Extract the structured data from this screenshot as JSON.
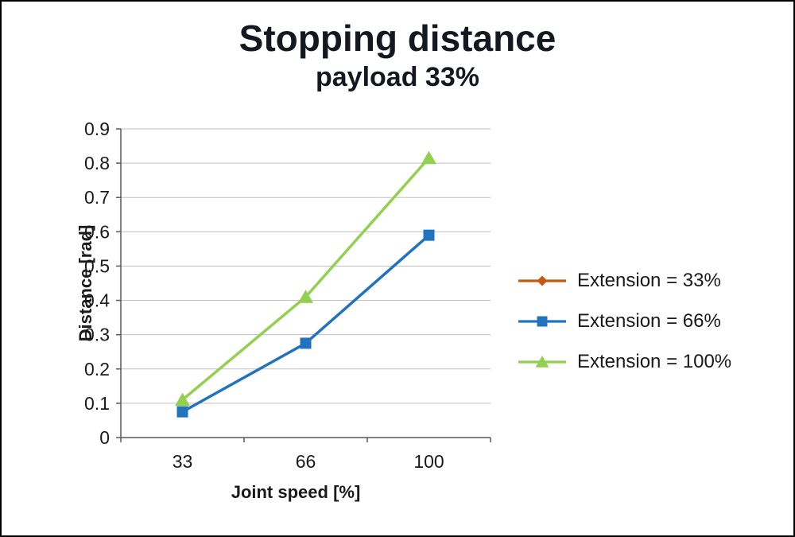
{
  "chart_data": {
    "type": "line",
    "title": "Stopping distance",
    "subtitle": "payload 33%",
    "xlabel": "Joint speed [%]",
    "ylabel": "Distance [rad]",
    "categories": [
      "33",
      "66",
      "100"
    ],
    "ylim": [
      0,
      0.9
    ],
    "ytick_step": 0.1,
    "ytick_labels": [
      "0",
      "0.1",
      "0.2",
      "0.3",
      "0.4",
      "0.5",
      "0.6",
      "0.7",
      "0.8",
      "0.9"
    ],
    "grid": "horizontal",
    "legend_position": "right",
    "series": [
      {
        "name": "Extension = 33%",
        "color": "#C65911",
        "marker": "diamond",
        "values": [
          0.075,
          0.275,
          0.59
        ],
        "occluded": true
      },
      {
        "name": "Extension = 66%",
        "color": "#2273BE",
        "marker": "square",
        "values": [
          0.075,
          0.275,
          0.59
        ],
        "occluded": false
      },
      {
        "name": "Extension = 100%",
        "color": "#92D050",
        "marker": "triangle",
        "values": [
          0.11,
          0.41,
          0.815
        ],
        "occluded": false
      }
    ]
  }
}
